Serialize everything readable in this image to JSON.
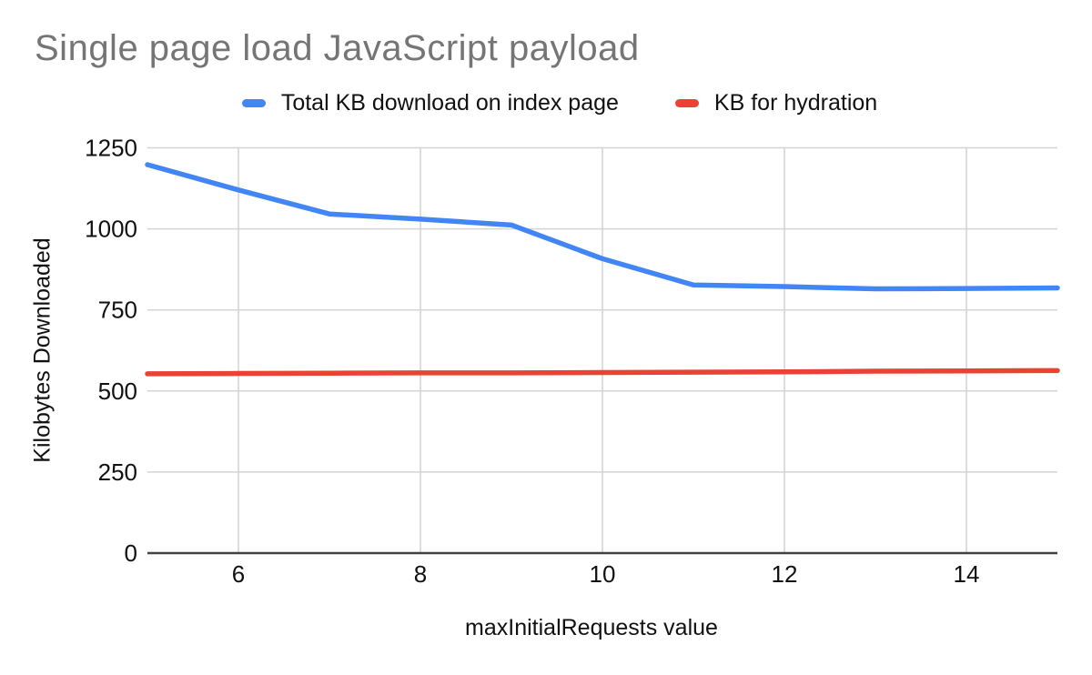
{
  "chart_data": {
    "type": "line",
    "title": "Single page load JavaScript payload",
    "xlabel": "maxInitialRequests value",
    "ylabel": "Kilobytes Downloaded",
    "x": [
      5,
      6,
      7,
      8,
      9,
      10,
      11,
      12,
      13,
      14,
      15
    ],
    "series": [
      {
        "name": "Total KB download on index page",
        "color": "#4285F4",
        "values": [
          1198,
          1120,
          1046,
          1030,
          1012,
          908,
          827,
          822,
          815,
          816,
          818
        ]
      },
      {
        "name": "KB for hydration",
        "color": "#EA4335",
        "values": [
          553,
          554,
          555,
          556,
          556,
          557,
          558,
          559,
          561,
          562,
          563
        ]
      }
    ],
    "xlim": [
      5,
      15
    ],
    "ylim": [
      0,
      1250
    ],
    "x_ticks": [
      6,
      8,
      10,
      12,
      14
    ],
    "y_ticks": [
      0,
      250,
      500,
      750,
      1000,
      1250
    ],
    "grid": true,
    "legend_position": "top",
    "colors": {
      "grid": "#d4d4d4",
      "axis": "#424242",
      "title": "#757575",
      "text": "#111111",
      "background": "#ffffff"
    }
  }
}
